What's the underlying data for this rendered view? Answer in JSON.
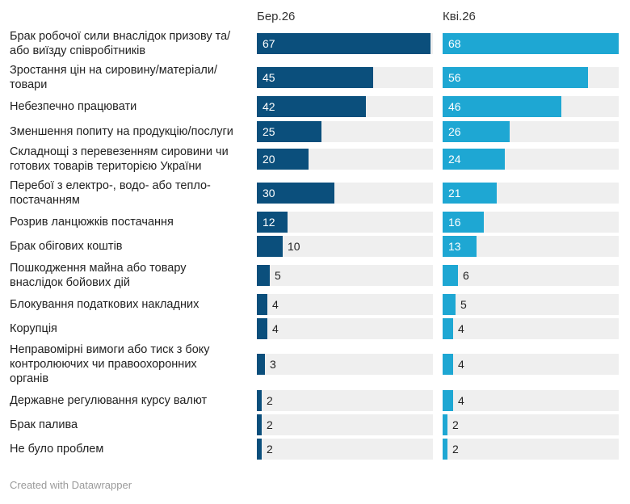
{
  "chart_data": {
    "type": "bar",
    "categories": [
      "Брак робочої сили внаслідок призову та/або виїзду співробітників",
      "Зростання цін на сировину/матеріали/товари",
      "Небезпечно працювати",
      "Зменшення попиту на продукцію/послуги",
      "Складнощі з перевезенням сировини чи готових товарів територією України",
      "Перебої з електро-, водо- або тепло- постачанням",
      "Розрив ланцюжків постачання",
      "Брак обігових коштів",
      "Пошкодження майна або товару внаслідок бойових дій",
      "Блокування податкових накладних",
      "Корупція",
      "Неправомірні вимоги або тиск з боку контролюючих чи правоохоронних органів",
      "Державне регулювання курсу валют",
      "Брак палива",
      "Не було проблем"
    ],
    "label_lines": [
      [
        "Брак робочої сили внаслідок призову та/",
        "або виїзду співробітників"
      ],
      [
        "Зростання цін на сировину/матеріали/",
        "товари"
      ],
      [
        "Небезпечно працювати"
      ],
      [
        "Зменшення попиту на продукцію/послуги"
      ],
      [
        "Складнощі з перевезенням сировини чи",
        "готових товарів територією України"
      ],
      [
        "Перебої з електро-, водо- або тепло-",
        "постачанням"
      ],
      [
        "Розрив ланцюжків постачання"
      ],
      [
        "Брак обігових коштів"
      ],
      [
        "Пошкодження майна або товару",
        "внаслідок бойових дій"
      ],
      [
        "Блокування податкових накладних"
      ],
      [
        "Корупція"
      ],
      [
        "Неправомірні вимоги або тиск з боку",
        "контролюючих чи правоохоронних",
        "органів"
      ],
      [
        "Державне регулювання курсу валют"
      ],
      [
        "Брак палива"
      ],
      [
        "Не було проблем"
      ]
    ],
    "series": [
      {
        "name": "Бер.26",
        "color": "#0b4f7c",
        "values": [
          67,
          45,
          42,
          25,
          20,
          30,
          12,
          10,
          5,
          4,
          4,
          3,
          2,
          2,
          2
        ]
      },
      {
        "name": "Кві.26",
        "color": "#1ea7d3",
        "values": [
          68,
          56,
          46,
          26,
          24,
          21,
          16,
          13,
          6,
          5,
          4,
          4,
          4,
          2,
          2
        ]
      }
    ],
    "xlim": [
      0,
      68
    ],
    "grid": false,
    "legend": "column headers"
  },
  "footer": "Created with Datawrapper"
}
